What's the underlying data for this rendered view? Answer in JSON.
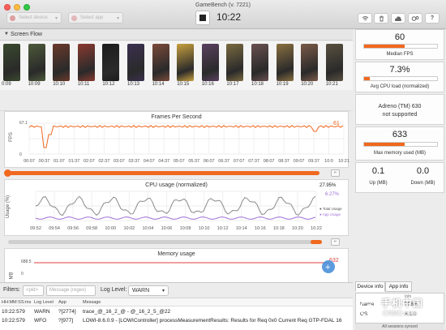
{
  "window": {
    "title": "GameBench (v. 7221)",
    "device_placeholder": "Select device",
    "app_placeholder": "Select app",
    "timer": "10:22"
  },
  "toolbar_icons": [
    "wifi-icon",
    "trash-icon",
    "cloud-upload-icon",
    "settings-icon",
    "help-icon"
  ],
  "screen_flow": {
    "title": "Screen Flow",
    "frame_times": [
      "0:09",
      "10:09",
      "10:10",
      "10:11",
      "10:12",
      "10:13",
      "10:14",
      "10:15",
      "10:16",
      "10:17",
      "10:18",
      "10:19",
      "10:20",
      "10:21"
    ],
    "frame_colors": [
      "#3a4a2e",
      "#4d5a3a",
      "#6a3a2a",
      "#8a3a30",
      "#1c1c1c",
      "#3a3050",
      "#7a4a3a",
      "#c8a040",
      "#5a4060",
      "#7a6a40",
      "#6a5050",
      "#8a7040",
      "#7a5a48",
      "#5a5040"
    ]
  },
  "fps_chart": {
    "title": "Frames Per Second",
    "ylabel": "FPS",
    "current_value": "61",
    "x_ticks": [
      "00:07",
      "00:37",
      "01:07",
      "01:37",
      "02:07",
      "02:37",
      "03:07",
      "03:37",
      "04:07",
      "04:37",
      "05:07",
      "05:37",
      "06:07",
      "06:37",
      "07:07",
      "07:37",
      "08:07",
      "08:37",
      "09:07",
      "09:37",
      "10:0",
      "10:21"
    ]
  },
  "cpu_chart": {
    "title": "CPU usage (normalized)",
    "ylabel": "Usage (%)",
    "total_value": "27.95%",
    "app_value": "6.27%",
    "legend_total": "Total Usage",
    "legend_app": "App Usage",
    "x_ticks": [
      "09:52",
      "09:54",
      "09:56",
      "09:58",
      "10:00",
      "10:02",
      "10:04",
      "10:06",
      "10:08",
      "10:10",
      "10:12",
      "10:14",
      "10:16",
      "10:18",
      "10:20",
      "10:22"
    ]
  },
  "memory_chart": {
    "title": "Memory usage",
    "ylabel": "MB",
    "current_value": "632"
  },
  "filters": {
    "label": "Filters:",
    "pid_placeholder": "<pid>",
    "message_placeholder": "Message (regex)",
    "log_level_label": "Log Level:",
    "log_level_value": "WARN"
  },
  "log": {
    "columns": [
      "HH:MM:SS:ms",
      "Log Level",
      "App",
      "Message"
    ],
    "rows": [
      {
        "time": "10:22:579",
        "level": "WARN",
        "app": "?[2774]",
        "message": "trace_@_16_2_@ - @_16_2_5_@22"
      },
      {
        "time": "10:22:579",
        "level": "WFO",
        "app": "?[977]",
        "message": "LOWI-8.6.0.9 - [LOWIController] processMeasurementResults: Results for Req 0x0 Current Req GTP-FDAL 16"
      }
    ]
  },
  "metrics": {
    "median_fps": {
      "value": "60",
      "label": "Median FPS",
      "fraction": 0.55
    },
    "avg_cpu": {
      "value": "7.3%",
      "label": "Avg CPU load (normalized)",
      "fraction": 0.073
    },
    "gpu": {
      "line1": "Adreno (TM) 630",
      "line2": "not supported"
    },
    "max_memory": {
      "value": "633",
      "label": "Max memory used (MB)",
      "fraction": 0.55
    },
    "up": {
      "value": "0.1",
      "label": "Up (MB)"
    },
    "down": {
      "value": "0.0",
      "label": "Down (MB)"
    }
  },
  "info_tabs": [
    "Device info",
    "App info"
  ],
  "device_info": {
    "col_header": "Info",
    "rows": [
      {
        "key": "Name",
        "value": "?f 8.6"
      },
      {
        "key": "OS",
        "value": "8.1.0"
      }
    ]
  },
  "sync_status": "All sessions synced",
  "watermark": {
    "text": "手机中国",
    "sub": "CNMO.com"
  },
  "colors": {
    "accent": "#f1681f",
    "cpu_total": "#8a8a8a",
    "cpu_app": "#a070d8",
    "memory": "#e04040",
    "marker": "#4a90d9"
  }
}
